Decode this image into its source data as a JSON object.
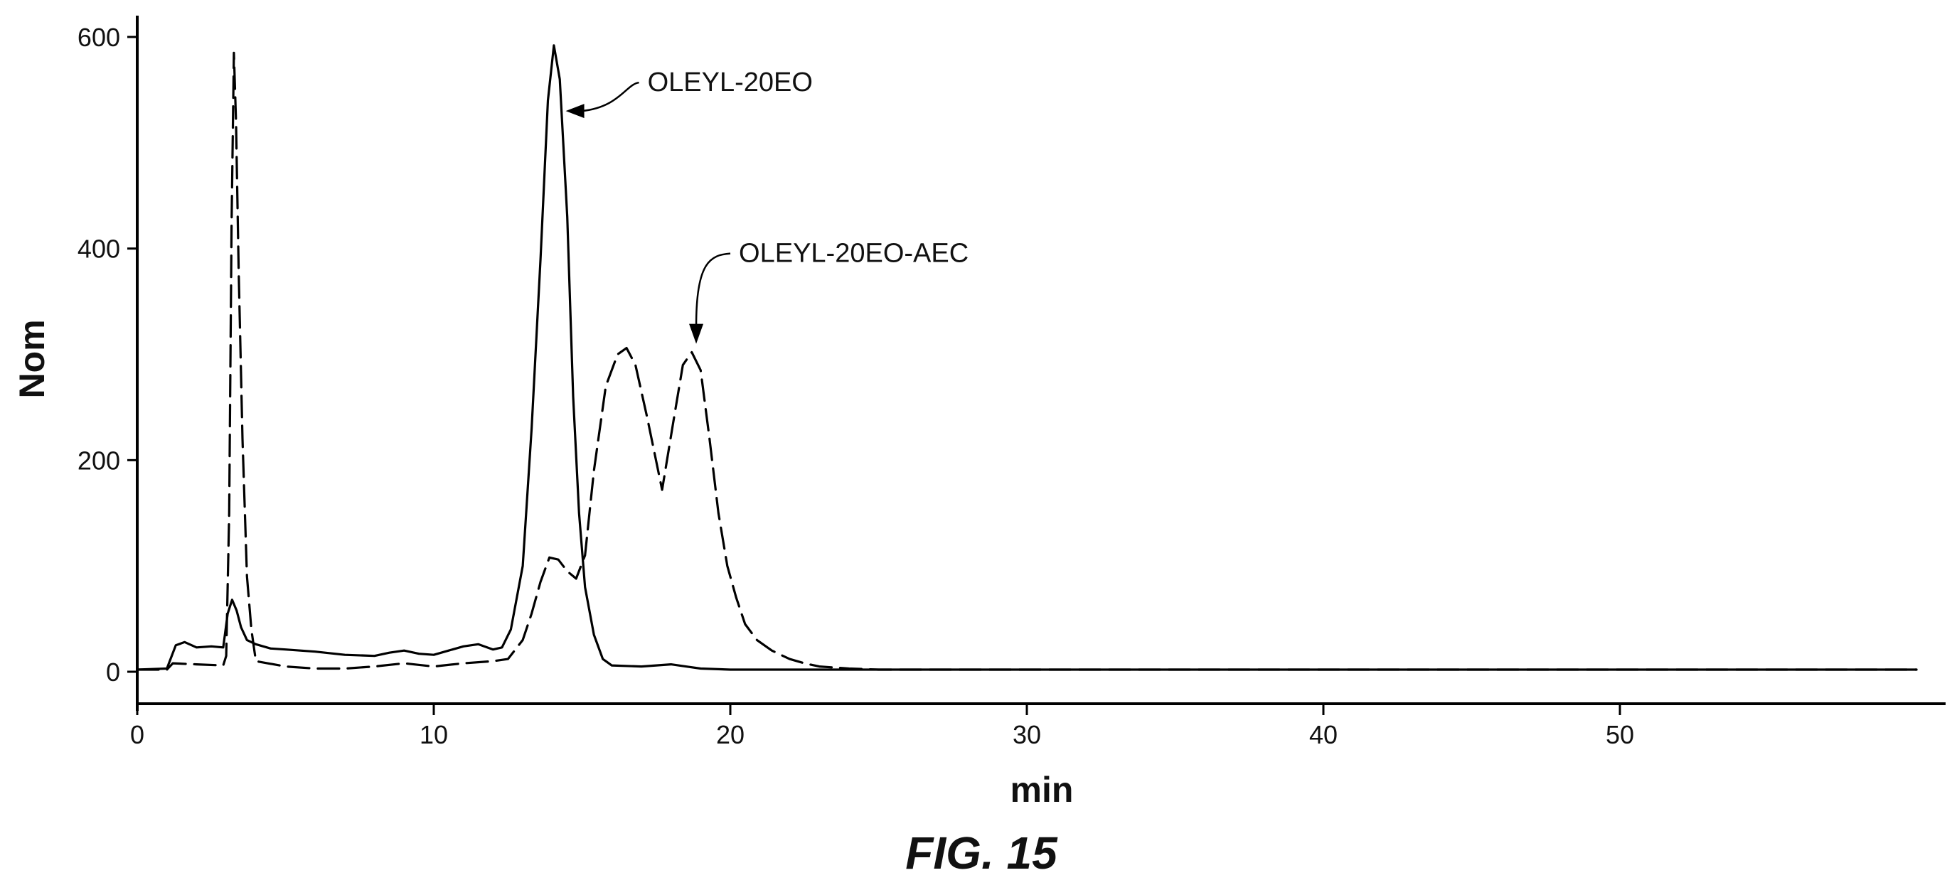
{
  "chart_data": {
    "type": "line",
    "xlabel": "min",
    "ylabel": "Nom",
    "caption": "FIG. 15",
    "xlim": [
      0,
      60
    ],
    "ylim": [
      -30,
      620
    ],
    "x_ticks": [
      0,
      10,
      20,
      30,
      40,
      50
    ],
    "y_ticks": [
      0,
      200,
      400,
      600
    ],
    "x_tick_labels": [
      "0",
      "10",
      "20",
      "30",
      "40",
      "50"
    ],
    "y_tick_labels": [
      "0",
      "200",
      "400",
      "600"
    ],
    "grid": false,
    "legend": "none",
    "series": [
      {
        "name": "OLEYL-20EO",
        "style": "solid",
        "points": [
          [
            0,
            2
          ],
          [
            1,
            3
          ],
          [
            1.3,
            25
          ],
          [
            1.6,
            28
          ],
          [
            2,
            23
          ],
          [
            2.5,
            24
          ],
          [
            2.9,
            23
          ],
          [
            3.05,
            55
          ],
          [
            3.2,
            68
          ],
          [
            3.35,
            58
          ],
          [
            3.5,
            42
          ],
          [
            3.7,
            30
          ],
          [
            4,
            26
          ],
          [
            4.5,
            22
          ],
          [
            5,
            21
          ],
          [
            6,
            19
          ],
          [
            7,
            16
          ],
          [
            8,
            15
          ],
          [
            8.5,
            18
          ],
          [
            9,
            20
          ],
          [
            9.5,
            17
          ],
          [
            10,
            16
          ],
          [
            10.5,
            20
          ],
          [
            11,
            24
          ],
          [
            11.5,
            26
          ],
          [
            12,
            21
          ],
          [
            12.3,
            23
          ],
          [
            12.6,
            40
          ],
          [
            13,
            100
          ],
          [
            13.3,
            230
          ],
          [
            13.6,
            390
          ],
          [
            13.85,
            540
          ],
          [
            14.05,
            592
          ],
          [
            14.25,
            560
          ],
          [
            14.5,
            430
          ],
          [
            14.7,
            260
          ],
          [
            14.9,
            150
          ],
          [
            15.1,
            80
          ],
          [
            15.4,
            35
          ],
          [
            15.7,
            12
          ],
          [
            16,
            6
          ],
          [
            17,
            5
          ],
          [
            18,
            7
          ],
          [
            18.5,
            5
          ],
          [
            19,
            3
          ],
          [
            20,
            2
          ],
          [
            30,
            2
          ],
          [
            40,
            2
          ],
          [
            50,
            2
          ],
          [
            60,
            2
          ]
        ]
      },
      {
        "name": "OLEYL-20EO-AEC",
        "style": "dashed",
        "points": [
          [
            0,
            2
          ],
          [
            1,
            2
          ],
          [
            1.2,
            8
          ],
          [
            2,
            7
          ],
          [
            2.9,
            6
          ],
          [
            3.0,
            15
          ],
          [
            3.1,
            150
          ],
          [
            3.18,
            420
          ],
          [
            3.26,
            585
          ],
          [
            3.33,
            520
          ],
          [
            3.42,
            380
          ],
          [
            3.55,
            220
          ],
          [
            3.7,
            90
          ],
          [
            3.85,
            40
          ],
          [
            4,
            10
          ],
          [
            5,
            5
          ],
          [
            6,
            3
          ],
          [
            7,
            3
          ],
          [
            8,
            5
          ],
          [
            9,
            8
          ],
          [
            10,
            5
          ],
          [
            11,
            8
          ],
          [
            12,
            10
          ],
          [
            12.5,
            12
          ],
          [
            13,
            30
          ],
          [
            13.3,
            55
          ],
          [
            13.6,
            85
          ],
          [
            13.9,
            108
          ],
          [
            14.2,
            106
          ],
          [
            14.5,
            95
          ],
          [
            14.8,
            88
          ],
          [
            15.1,
            110
          ],
          [
            15.4,
            190
          ],
          [
            15.8,
            270
          ],
          [
            16.2,
            300
          ],
          [
            16.5,
            306
          ],
          [
            16.8,
            290
          ],
          [
            17.2,
            240
          ],
          [
            17.7,
            172
          ],
          [
            18.1,
            240
          ],
          [
            18.4,
            290
          ],
          [
            18.7,
            302
          ],
          [
            19.0,
            285
          ],
          [
            19.3,
            220
          ],
          [
            19.6,
            150
          ],
          [
            19.9,
            100
          ],
          [
            20.2,
            70
          ],
          [
            20.5,
            45
          ],
          [
            20.9,
            30
          ],
          [
            21.4,
            20
          ],
          [
            22,
            12
          ],
          [
            22.5,
            8
          ],
          [
            23,
            5
          ],
          [
            24,
            3
          ],
          [
            25,
            2
          ],
          [
            30,
            2
          ],
          [
            40,
            2
          ],
          [
            50,
            2
          ],
          [
            60,
            2
          ]
        ]
      }
    ],
    "annotations": [
      {
        "text": "OLEYL-20EO",
        "target": [
          14.45,
          530
        ],
        "series": "OLEYL-20EO"
      },
      {
        "text": "OLEYL-20EO-AEC",
        "target": [
          18.85,
          310
        ],
        "series": "OLEYL-20EO-AEC"
      }
    ]
  }
}
